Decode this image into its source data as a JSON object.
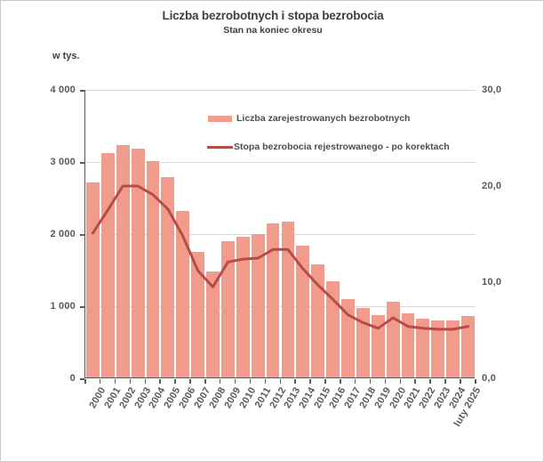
{
  "chart_data": {
    "type": "bar",
    "combo": "bar+line",
    "title": "Liczba bezrobotnych i stopa bezrobocia",
    "subtitle": "Stan na koniec okresu",
    "left_axis": {
      "label": "w tys.",
      "min": 0,
      "max": 4000,
      "tick_values": [
        4000,
        3000,
        2000,
        1000,
        0
      ],
      "tick_labels": [
        "4 000",
        "3 000",
        "2 000",
        "1 000",
        "0"
      ]
    },
    "right_axis": {
      "min": 0,
      "max": 30,
      "tick_values": [
        30,
        20,
        10,
        0
      ],
      "tick_labels": [
        "30,0",
        "20,0",
        "10,0",
        "0,0"
      ]
    },
    "grid": true,
    "legend_position": "top-inside",
    "categories": [
      "2000",
      "2001",
      "2002",
      "2003",
      "2004",
      "2005",
      "2006",
      "2007",
      "2008",
      "2009",
      "2010",
      "2011",
      "2012",
      "2013",
      "2014",
      "2015",
      "2016",
      "2017",
      "2018",
      "2019",
      "2020",
      "2021",
      "2022",
      "2023",
      "2024",
      "luty 2025"
    ],
    "series": [
      {
        "name": "Liczba zarejestrowanych bezrobotnych",
        "kind": "bar",
        "axis": "left",
        "color": "#f19b8d",
        "values": [
          2703,
          3115,
          3217,
          3176,
          3000,
          2773,
          2309,
          1747,
          1474,
          1893,
          1955,
          1983,
          2137,
          2158,
          1825,
          1563,
          1335,
          1082,
          969,
          866,
          1046,
          895,
          812,
          788,
          787,
          854
        ]
      },
      {
        "name": "Stopa bezrobocia rejestrowanego - po korektach",
        "kind": "line",
        "axis": "right",
        "color": "#b74b47",
        "values": [
          15.1,
          17.5,
          20.0,
          20.0,
          19.1,
          17.6,
          14.8,
          11.2,
          9.5,
          12.1,
          12.4,
          12.5,
          13.4,
          13.4,
          11.4,
          9.7,
          8.2,
          6.6,
          5.8,
          5.2,
          6.3,
          5.4,
          5.2,
          5.1,
          5.1,
          5.4
        ]
      }
    ],
    "colors": {
      "bar_fill": "#f19b8d",
      "line_stroke": "#b74b47",
      "gridline": "#d9d9d9",
      "axis_line": "#5a5a5a",
      "tick_text": "#595959",
      "title_text": "#3f3f3f",
      "frame_border": "#c9c9c9"
    }
  }
}
